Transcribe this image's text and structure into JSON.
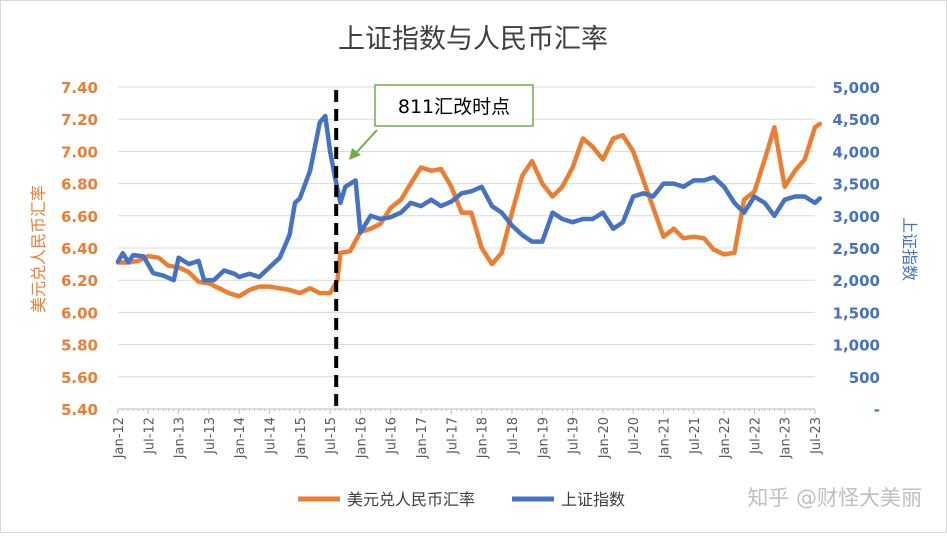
{
  "chart_data": {
    "type": "line",
    "title": "上证指数与人民币汇率",
    "left_axis": {
      "label": "美元兑人民币汇率",
      "color": "#ED7D31",
      "range": [
        5.4,
        7.4
      ],
      "ticks": [
        "7.40",
        "7.20",
        "7.00",
        "6.80",
        "6.60",
        "6.40",
        "6.20",
        "6.00",
        "5.80",
        "5.60",
        "5.40"
      ]
    },
    "right_axis": {
      "label": "上证指数",
      "color": "#4472C4",
      "range": [
        0,
        5000
      ],
      "ticks": [
        "5,000",
        "4,500",
        "4,000",
        "3,500",
        "3,000",
        "2,500",
        "2,000",
        "1,500",
        "1,000",
        "500",
        "-"
      ]
    },
    "x_labels": [
      "Jan-12",
      "Jul-12",
      "Jan-13",
      "Jul-13",
      "Jan-14",
      "Jul-14",
      "Jan-15",
      "Jul-15",
      "Jan-16",
      "Jul-16",
      "Jan-17",
      "Jul-17",
      "Jan-18",
      "Jul-18",
      "Jan-19",
      "Jul-19",
      "Jan-20",
      "Jul-20",
      "Jan-21",
      "Jul-21",
      "Jan-22",
      "Jul-22",
      "Jan-23",
      "Jul-23"
    ],
    "x_range": [
      2012.0,
      2023.5
    ],
    "grid": true,
    "legend_position": "bottom",
    "series": [
      {
        "name": "美元兑人民币汇率",
        "color": "#ED7D31",
        "axis": "left",
        "points": [
          [
            2012.0,
            6.31
          ],
          [
            2012.17,
            6.31
          ],
          [
            2012.33,
            6.32
          ],
          [
            2012.5,
            6.35
          ],
          [
            2012.67,
            6.34
          ],
          [
            2012.83,
            6.29
          ],
          [
            2013.0,
            6.28
          ],
          [
            2013.17,
            6.25
          ],
          [
            2013.33,
            6.19
          ],
          [
            2013.5,
            6.18
          ],
          [
            2013.67,
            6.15
          ],
          [
            2013.83,
            6.12
          ],
          [
            2014.0,
            6.1
          ],
          [
            2014.17,
            6.14
          ],
          [
            2014.33,
            6.16
          ],
          [
            2014.5,
            6.16
          ],
          [
            2014.67,
            6.15
          ],
          [
            2014.83,
            6.14
          ],
          [
            2015.0,
            6.12
          ],
          [
            2015.17,
            6.15
          ],
          [
            2015.33,
            6.12
          ],
          [
            2015.5,
            6.12
          ],
          [
            2015.62,
            6.2
          ],
          [
            2015.67,
            6.37
          ],
          [
            2015.83,
            6.38
          ],
          [
            2016.0,
            6.5
          ],
          [
            2016.17,
            6.52
          ],
          [
            2016.33,
            6.55
          ],
          [
            2016.5,
            6.65
          ],
          [
            2016.67,
            6.7
          ],
          [
            2016.83,
            6.8
          ],
          [
            2017.0,
            6.9
          ],
          [
            2017.17,
            6.88
          ],
          [
            2017.33,
            6.89
          ],
          [
            2017.5,
            6.78
          ],
          [
            2017.67,
            6.62
          ],
          [
            2017.83,
            6.62
          ],
          [
            2018.0,
            6.4
          ],
          [
            2018.17,
            6.3
          ],
          [
            2018.33,
            6.37
          ],
          [
            2018.5,
            6.62
          ],
          [
            2018.67,
            6.85
          ],
          [
            2018.83,
            6.94
          ],
          [
            2019.0,
            6.8
          ],
          [
            2019.17,
            6.72
          ],
          [
            2019.33,
            6.78
          ],
          [
            2019.5,
            6.9
          ],
          [
            2019.67,
            7.08
          ],
          [
            2019.83,
            7.03
          ],
          [
            2020.0,
            6.95
          ],
          [
            2020.17,
            7.08
          ],
          [
            2020.33,
            7.1
          ],
          [
            2020.5,
            7.0
          ],
          [
            2020.67,
            6.82
          ],
          [
            2020.83,
            6.65
          ],
          [
            2021.0,
            6.47
          ],
          [
            2021.17,
            6.52
          ],
          [
            2021.33,
            6.46
          ],
          [
            2021.5,
            6.47
          ],
          [
            2021.67,
            6.46
          ],
          [
            2021.83,
            6.39
          ],
          [
            2022.0,
            6.36
          ],
          [
            2022.17,
            6.37
          ],
          [
            2022.33,
            6.7
          ],
          [
            2022.5,
            6.75
          ],
          [
            2022.67,
            6.95
          ],
          [
            2022.83,
            7.15
          ],
          [
            2023.0,
            6.78
          ],
          [
            2023.17,
            6.88
          ],
          [
            2023.33,
            6.95
          ],
          [
            2023.5,
            7.15
          ],
          [
            2023.58,
            7.17
          ]
        ]
      },
      {
        "name": "上证指数",
        "color": "#4472C4",
        "axis": "right",
        "points": [
          [
            2012.0,
            2290
          ],
          [
            2012.08,
            2420
          ],
          [
            2012.17,
            2280
          ],
          [
            2012.25,
            2390
          ],
          [
            2012.42,
            2370
          ],
          [
            2012.58,
            2110
          ],
          [
            2012.75,
            2070
          ],
          [
            2012.92,
            2000
          ],
          [
            2013.0,
            2350
          ],
          [
            2013.17,
            2250
          ],
          [
            2013.33,
            2300
          ],
          [
            2013.42,
            2000
          ],
          [
            2013.58,
            2000
          ],
          [
            2013.75,
            2150
          ],
          [
            2013.92,
            2100
          ],
          [
            2014.0,
            2050
          ],
          [
            2014.17,
            2100
          ],
          [
            2014.33,
            2050
          ],
          [
            2014.5,
            2200
          ],
          [
            2014.67,
            2350
          ],
          [
            2014.83,
            2700
          ],
          [
            2014.92,
            3200
          ],
          [
            2015.0,
            3270
          ],
          [
            2015.17,
            3700
          ],
          [
            2015.33,
            4450
          ],
          [
            2015.42,
            4550
          ],
          [
            2015.5,
            4000
          ],
          [
            2015.58,
            3600
          ],
          [
            2015.67,
            3200
          ],
          [
            2015.75,
            3450
          ],
          [
            2015.92,
            3550
          ],
          [
            2016.0,
            2740
          ],
          [
            2016.17,
            3000
          ],
          [
            2016.33,
            2950
          ],
          [
            2016.5,
            2980
          ],
          [
            2016.67,
            3050
          ],
          [
            2016.83,
            3200
          ],
          [
            2017.0,
            3150
          ],
          [
            2017.17,
            3250
          ],
          [
            2017.33,
            3150
          ],
          [
            2017.5,
            3220
          ],
          [
            2017.67,
            3350
          ],
          [
            2017.83,
            3380
          ],
          [
            2018.0,
            3450
          ],
          [
            2018.17,
            3150
          ],
          [
            2018.33,
            3050
          ],
          [
            2018.5,
            2850
          ],
          [
            2018.67,
            2700
          ],
          [
            2018.83,
            2600
          ],
          [
            2019.0,
            2600
          ],
          [
            2019.17,
            3050
          ],
          [
            2019.33,
            2950
          ],
          [
            2019.5,
            2900
          ],
          [
            2019.67,
            2950
          ],
          [
            2019.83,
            2950
          ],
          [
            2020.0,
            3050
          ],
          [
            2020.17,
            2800
          ],
          [
            2020.33,
            2900
          ],
          [
            2020.5,
            3300
          ],
          [
            2020.67,
            3350
          ],
          [
            2020.83,
            3300
          ],
          [
            2021.0,
            3500
          ],
          [
            2021.17,
            3500
          ],
          [
            2021.33,
            3450
          ],
          [
            2021.5,
            3550
          ],
          [
            2021.67,
            3550
          ],
          [
            2021.83,
            3600
          ],
          [
            2022.0,
            3450
          ],
          [
            2022.17,
            3200
          ],
          [
            2022.33,
            3050
          ],
          [
            2022.5,
            3300
          ],
          [
            2022.67,
            3200
          ],
          [
            2022.83,
            3000
          ],
          [
            2023.0,
            3250
          ],
          [
            2023.17,
            3300
          ],
          [
            2023.33,
            3300
          ],
          [
            2023.5,
            3200
          ],
          [
            2023.58,
            3270
          ]
        ]
      }
    ],
    "annotation": {
      "text": "811汇改时点",
      "event_x": 2015.6
    }
  },
  "watermark": "知乎 @财怪大美丽"
}
